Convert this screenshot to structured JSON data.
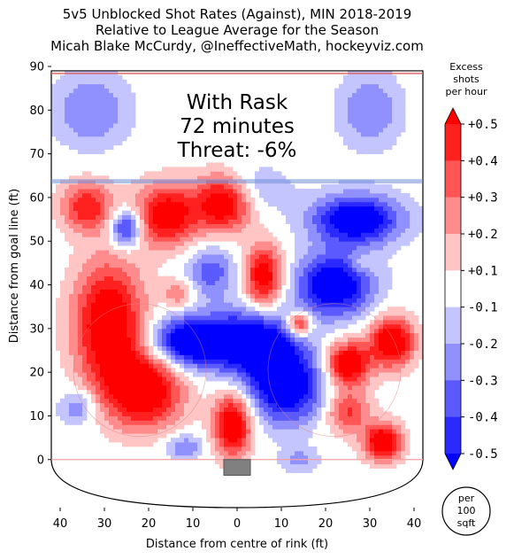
{
  "chart_data": {
    "type": "heatmap",
    "title_lines": [
      "5v5 Unblocked Shot Rates (Against), MIN 2018-2019",
      "Relative to League Average for the Season",
      "Micah Blake McCurdy, @IneffectiveMath, hockeyviz.com"
    ],
    "xlabel": "Distance from centre of rink (ft)",
    "ylabel": "Distance from goal line (ft)",
    "xlim": [
      -42,
      42
    ],
    "ylim": [
      -11,
      90
    ],
    "x_ticks": [
      -40,
      -30,
      -20,
      -10,
      0,
      10,
      20,
      30,
      40
    ],
    "x_tick_labels": [
      "40",
      "30",
      "20",
      "10",
      "0",
      "10",
      "20",
      "30",
      "40"
    ],
    "y_ticks": [
      0,
      10,
      20,
      30,
      40,
      50,
      60,
      70,
      80,
      90
    ],
    "y_tick_labels": [
      "0",
      "10",
      "20",
      "30",
      "40",
      "50",
      "60",
      "70",
      "80",
      "90"
    ],
    "overlay_text": [
      "With Rask",
      "72 minutes",
      "Threat: -6%"
    ],
    "colorbar": {
      "title": [
        "Excess",
        "shots",
        "per hour"
      ],
      "levels": [
        0.5,
        0.4,
        0.3,
        0.2,
        0.1,
        -0.1,
        -0.2,
        -0.3,
        -0.4,
        -0.5
      ],
      "labels": [
        "+0.5",
        "+0.4",
        "+0.3",
        "+0.2",
        "+0.1",
        "-0.1",
        "-0.2",
        "-0.3",
        "-0.4",
        "-0.5"
      ],
      "colors": [
        "#ff0000",
        "#ff2020",
        "#ff5555",
        "#ff8c8c",
        "#ffc4c4",
        "#ffffff",
        "#c4c4ff",
        "#9090ff",
        "#5a5aff",
        "#2a2aff",
        "#0000ff"
      ]
    },
    "unit_label": [
      "per",
      "100",
      "sqft"
    ],
    "hotspots": [
      {
        "x": -29,
        "y": 31,
        "sx": 5.5,
        "sy": 10,
        "v": 0.5
      },
      {
        "x": -21,
        "y": 16,
        "sx": 6,
        "sy": 6,
        "v": 0.5
      },
      {
        "x": -34,
        "y": 58,
        "sx": 4,
        "sy": 4,
        "v": 0.35
      },
      {
        "x": -25,
        "y": 53,
        "sx": 2.5,
        "sy": 3,
        "v": -0.4
      },
      {
        "x": -16,
        "y": 56,
        "sx": 5,
        "sy": 5,
        "v": 0.45
      },
      {
        "x": -3,
        "y": 59,
        "sx": 4.5,
        "sy": 4.5,
        "v": 0.5
      },
      {
        "x": -6,
        "y": 43,
        "sx": 4,
        "sy": 4,
        "v": -0.25
      },
      {
        "x": 6,
        "y": 42,
        "sx": 3,
        "sy": 5,
        "v": 0.45
      },
      {
        "x": -13,
        "y": 38,
        "sx": 2.5,
        "sy": 2.5,
        "v": 0.2
      },
      {
        "x": -11,
        "y": 27,
        "sx": 6,
        "sy": 4,
        "v": -0.5
      },
      {
        "x": 3,
        "y": 27,
        "sx": 7,
        "sy": 5,
        "v": -0.5
      },
      {
        "x": 11,
        "y": 17,
        "sx": 6,
        "sy": 6,
        "v": -0.5
      },
      {
        "x": 27,
        "y": 55,
        "sx": 7,
        "sy": 4,
        "v": -0.5
      },
      {
        "x": 22,
        "y": 40,
        "sx": 6,
        "sy": 5,
        "v": -0.5
      },
      {
        "x": 14,
        "y": 31,
        "sx": 2,
        "sy": 2,
        "v": 0.4
      },
      {
        "x": 25,
        "y": 22,
        "sx": 3.5,
        "sy": 3.5,
        "v": 0.5
      },
      {
        "x": 35,
        "y": 27,
        "sx": 3.5,
        "sy": 4,
        "v": 0.5
      },
      {
        "x": 25,
        "y": 11,
        "sx": 3.5,
        "sy": 3.5,
        "v": 0.3
      },
      {
        "x": 33,
        "y": 4,
        "sx": 3,
        "sy": 3,
        "v": 0.5
      },
      {
        "x": -1,
        "y": 8,
        "sx": 3,
        "sy": 5,
        "v": 0.5
      },
      {
        "x": 3,
        "y": 62,
        "sx": 6,
        "sy": 4,
        "v": -0.15
      },
      {
        "x": -33,
        "y": 80,
        "sx": 6,
        "sy": 6,
        "v": -0.2
      },
      {
        "x": 30,
        "y": 80,
        "sx": 5,
        "sy": 6,
        "v": -0.2
      },
      {
        "x": -36,
        "y": 12,
        "sx": 3,
        "sy": 3,
        "v": -0.2
      },
      {
        "x": -12,
        "y": 3,
        "sx": 3,
        "sy": 2,
        "v": -0.2
      },
      {
        "x": 14,
        "y": 0,
        "sx": 3,
        "sy": 2,
        "v": -0.15
      },
      {
        "x": 28,
        "y": 45,
        "sx": 2,
        "sy": 2,
        "v": 0.1
      }
    ]
  }
}
